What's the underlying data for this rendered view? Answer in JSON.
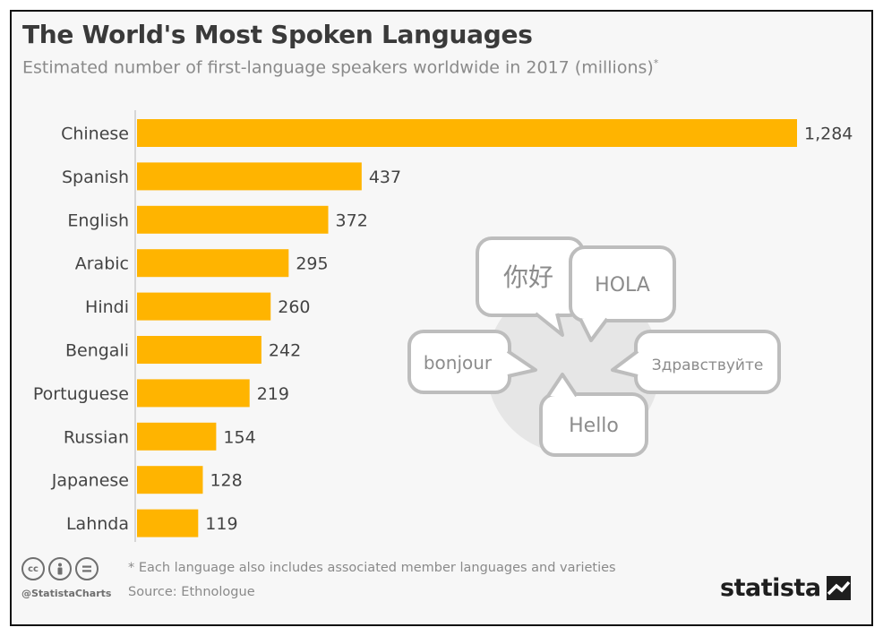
{
  "header": {
    "title": "The World's Most Spoken Languages",
    "subtitle": "Estimated number of first-language speakers worldwide in 2017 (millions)",
    "subtitle_marker": "*"
  },
  "chart_data": {
    "type": "bar",
    "orientation": "horizontal",
    "title": "The World's Most Spoken Languages",
    "subtitle": "Estimated number of first-language speakers worldwide in 2017 (millions)",
    "categories": [
      "Chinese",
      "Spanish",
      "English",
      "Arabic",
      "Hindi",
      "Bengali",
      "Portuguese",
      "Russian",
      "Japanese",
      "Lahnda"
    ],
    "values": [
      1284,
      437,
      372,
      295,
      260,
      242,
      219,
      154,
      128,
      119
    ],
    "value_labels": [
      "1,284",
      "437",
      "372",
      "295",
      "260",
      "242",
      "219",
      "154",
      "128",
      "119"
    ],
    "xlim": [
      0,
      1284
    ],
    "bar_color": "#FFB400",
    "grid": false
  },
  "illustration": {
    "bubbles": [
      "你好",
      "HOLA",
      "bonjour",
      "Здравствуйте",
      "Hello"
    ],
    "bubble_color": "#bdbdbd"
  },
  "footer": {
    "note": "* Each language also includes associated member languages and varieties",
    "source": "Source: Ethnologue",
    "handle": "@StatistaCharts",
    "license_icons": [
      "cc-icon",
      "attribution-icon",
      "no-derivatives-icon"
    ],
    "brand": "statista"
  }
}
